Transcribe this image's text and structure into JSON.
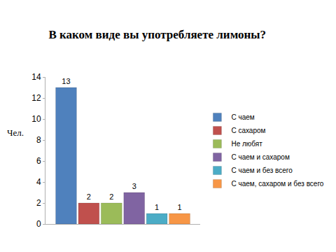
{
  "chart_data": {
    "type": "bar",
    "title": "В каком виде вы употребляете лимоны?",
    "y_label": "Чел.",
    "categories": [
      null
    ],
    "series": [
      {
        "name": "С чаем",
        "color": "#4f81bd",
        "values": [
          13
        ]
      },
      {
        "name": "С сахаром",
        "color": "#c0504d",
        "values": [
          2
        ]
      },
      {
        "name": "Не любят",
        "color": "#9bbb59",
        "values": [
          2
        ]
      },
      {
        "name": "С чаем и сахаром",
        "color": "#8064a2",
        "values": [
          3
        ]
      },
      {
        "name": "С чаем и без всего",
        "color": "#4bacc6",
        "values": [
          1
        ]
      },
      {
        "name": "С чаем, сахаром и без всего",
        "color": "#f79646",
        "values": [
          1
        ]
      }
    ],
    "ylim": [
      0,
      14
    ],
    "yticks": [
      0,
      2,
      4,
      6,
      8,
      10,
      12,
      14
    ],
    "grid": false,
    "legend": "right",
    "data_labels": true
  }
}
